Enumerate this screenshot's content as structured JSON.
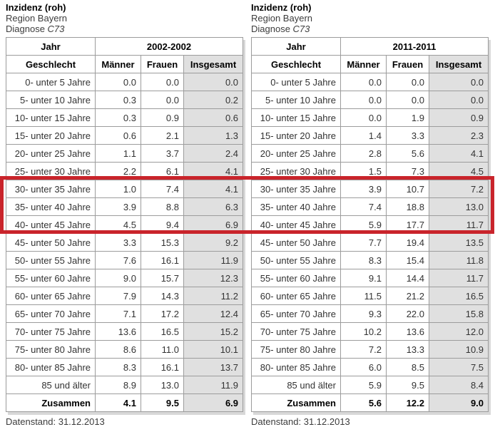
{
  "tables": [
    {
      "title": "Inzidenz (roh)",
      "region": "Region Bayern",
      "diagnose_prefix": "Diagnose ",
      "diagnose_code": "C73",
      "year_header_label": "Jahr",
      "year_range": "2002-2002",
      "geschlecht_label": "Geschlecht",
      "col_maenner": "Männer",
      "col_frauen": "Frauen",
      "col_insgesamt": "Insgesamt",
      "datenstand": "Datenstand: 31.12.2013",
      "rows": [
        {
          "label": "0- unter 5 Jahre",
          "maenner": "0.0",
          "frauen": "0.0",
          "insgesamt": "0.0",
          "total": false,
          "highlighted": false
        },
        {
          "label": "5- unter 10 Jahre",
          "maenner": "0.3",
          "frauen": "0.0",
          "insgesamt": "0.2",
          "total": false,
          "highlighted": false
        },
        {
          "label": "10- unter 15 Jahre",
          "maenner": "0.3",
          "frauen": "0.9",
          "insgesamt": "0.6",
          "total": false,
          "highlighted": false
        },
        {
          "label": "15- unter 20 Jahre",
          "maenner": "0.6",
          "frauen": "2.1",
          "insgesamt": "1.3",
          "total": false,
          "highlighted": false
        },
        {
          "label": "20- unter 25 Jahre",
          "maenner": "1.1",
          "frauen": "3.7",
          "insgesamt": "2.4",
          "total": false,
          "highlighted": false
        },
        {
          "label": "25- unter 30 Jahre",
          "maenner": "2.2",
          "frauen": "6.1",
          "insgesamt": "4.1",
          "total": false,
          "highlighted": false
        },
        {
          "label": "30- unter 35 Jahre",
          "maenner": "1.0",
          "frauen": "7.4",
          "insgesamt": "4.1",
          "total": false,
          "highlighted": true
        },
        {
          "label": "35- unter 40 Jahre",
          "maenner": "3.9",
          "frauen": "8.8",
          "insgesamt": "6.3",
          "total": false,
          "highlighted": true
        },
        {
          "label": "40- unter 45 Jahre",
          "maenner": "4.5",
          "frauen": "9.4",
          "insgesamt": "6.9",
          "total": false,
          "highlighted": true
        },
        {
          "label": "45- unter 50 Jahre",
          "maenner": "3.3",
          "frauen": "15.3",
          "insgesamt": "9.2",
          "total": false,
          "highlighted": false
        },
        {
          "label": "50- unter 55 Jahre",
          "maenner": "7.6",
          "frauen": "16.1",
          "insgesamt": "11.9",
          "total": false,
          "highlighted": false
        },
        {
          "label": "55- unter 60 Jahre",
          "maenner": "9.0",
          "frauen": "15.7",
          "insgesamt": "12.3",
          "total": false,
          "highlighted": false
        },
        {
          "label": "60- unter 65 Jahre",
          "maenner": "7.9",
          "frauen": "14.3",
          "insgesamt": "11.2",
          "total": false,
          "highlighted": false
        },
        {
          "label": "65- unter 70 Jahre",
          "maenner": "7.1",
          "frauen": "17.2",
          "insgesamt": "12.4",
          "total": false,
          "highlighted": false
        },
        {
          "label": "70- unter 75 Jahre",
          "maenner": "13.6",
          "frauen": "16.5",
          "insgesamt": "15.2",
          "total": false,
          "highlighted": false
        },
        {
          "label": "75- unter 80 Jahre",
          "maenner": "8.6",
          "frauen": "11.0",
          "insgesamt": "10.1",
          "total": false,
          "highlighted": false
        },
        {
          "label": "80- unter 85 Jahre",
          "maenner": "8.3",
          "frauen": "16.1",
          "insgesamt": "13.7",
          "total": false,
          "highlighted": false
        },
        {
          "label": "85 und älter",
          "maenner": "8.9",
          "frauen": "13.0",
          "insgesamt": "11.9",
          "total": false,
          "highlighted": false
        },
        {
          "label": "Zusammen",
          "maenner": "4.1",
          "frauen": "9.5",
          "insgesamt": "6.9",
          "total": true,
          "highlighted": false
        }
      ]
    },
    {
      "title": "Inzidenz (roh)",
      "region": "Region Bayern",
      "diagnose_prefix": "Diagnose ",
      "diagnose_code": "C73",
      "year_header_label": "Jahr",
      "year_range": "2011-2011",
      "geschlecht_label": "Geschlecht",
      "col_maenner": "Männer",
      "col_frauen": "Frauen",
      "col_insgesamt": "Insgesamt",
      "datenstand": "Datenstand: 31.12.2013",
      "rows": [
        {
          "label": "0- unter 5 Jahre",
          "maenner": "0.0",
          "frauen": "0.0",
          "insgesamt": "0.0",
          "total": false,
          "highlighted": false
        },
        {
          "label": "5- unter 10 Jahre",
          "maenner": "0.0",
          "frauen": "0.0",
          "insgesamt": "0.0",
          "total": false,
          "highlighted": false
        },
        {
          "label": "10- unter 15 Jahre",
          "maenner": "0.0",
          "frauen": "1.9",
          "insgesamt": "0.9",
          "total": false,
          "highlighted": false
        },
        {
          "label": "15- unter 20 Jahre",
          "maenner": "1.4",
          "frauen": "3.3",
          "insgesamt": "2.3",
          "total": false,
          "highlighted": false
        },
        {
          "label": "20- unter 25 Jahre",
          "maenner": "2.8",
          "frauen": "5.6",
          "insgesamt": "4.1",
          "total": false,
          "highlighted": false
        },
        {
          "label": "25- unter 30 Jahre",
          "maenner": "1.5",
          "frauen": "7.3",
          "insgesamt": "4.5",
          "total": false,
          "highlighted": false
        },
        {
          "label": "30- unter 35 Jahre",
          "maenner": "3.9",
          "frauen": "10.7",
          "insgesamt": "7.2",
          "total": false,
          "highlighted": true
        },
        {
          "label": "35- unter 40 Jahre",
          "maenner": "7.4",
          "frauen": "18.8",
          "insgesamt": "13.0",
          "total": false,
          "highlighted": true
        },
        {
          "label": "40- unter 45 Jahre",
          "maenner": "5.9",
          "frauen": "17.7",
          "insgesamt": "11.7",
          "total": false,
          "highlighted": true
        },
        {
          "label": "45- unter 50 Jahre",
          "maenner": "7.7",
          "frauen": "19.4",
          "insgesamt": "13.5",
          "total": false,
          "highlighted": false
        },
        {
          "label": "50- unter 55 Jahre",
          "maenner": "8.3",
          "frauen": "15.4",
          "insgesamt": "11.8",
          "total": false,
          "highlighted": false
        },
        {
          "label": "55- unter 60 Jahre",
          "maenner": "9.1",
          "frauen": "14.4",
          "insgesamt": "11.7",
          "total": false,
          "highlighted": false
        },
        {
          "label": "60- unter 65 Jahre",
          "maenner": "11.5",
          "frauen": "21.2",
          "insgesamt": "16.5",
          "total": false,
          "highlighted": false
        },
        {
          "label": "65- unter 70 Jahre",
          "maenner": "9.3",
          "frauen": "22.0",
          "insgesamt": "15.8",
          "total": false,
          "highlighted": false
        },
        {
          "label": "70- unter 75 Jahre",
          "maenner": "10.2",
          "frauen": "13.6",
          "insgesamt": "12.0",
          "total": false,
          "highlighted": false
        },
        {
          "label": "75- unter 80 Jahre",
          "maenner": "7.2",
          "frauen": "13.3",
          "insgesamt": "10.9",
          "total": false,
          "highlighted": false
        },
        {
          "label": "80- unter 85 Jahre",
          "maenner": "6.0",
          "frauen": "8.5",
          "insgesamt": "7.5",
          "total": false,
          "highlighted": false
        },
        {
          "label": "85 und älter",
          "maenner": "5.9",
          "frauen": "9.5",
          "insgesamt": "8.4",
          "total": false,
          "highlighted": false
        },
        {
          "label": "Zusammen",
          "maenner": "5.6",
          "frauen": "12.2",
          "insgesamt": "9.0",
          "total": true,
          "highlighted": false
        }
      ]
    }
  ],
  "highlight": {
    "color": "#c9242b",
    "highlighted_rows": [
      "30- unter 35 Jahre",
      "35- unter 40 Jahre",
      "40- unter 45 Jahre"
    ]
  },
  "colors": {
    "border_grey": "#9c9c9c",
    "total_column_bg": "#e0e0e0",
    "shadow": "#d8d8d8"
  },
  "chart_data": [
    {
      "type": "table",
      "title": "Inzidenz (roh), Region Bayern, Diagnose C73, 2002-2002",
      "columns": [
        "Geschlecht",
        "Männer",
        "Frauen",
        "Insgesamt"
      ],
      "rows": [
        [
          "0- unter 5 Jahre",
          0.0,
          0.0,
          0.0
        ],
        [
          "5- unter 10 Jahre",
          0.3,
          0.0,
          0.2
        ],
        [
          "10- unter 15 Jahre",
          0.3,
          0.9,
          0.6
        ],
        [
          "15- unter 20 Jahre",
          0.6,
          2.1,
          1.3
        ],
        [
          "20- unter 25 Jahre",
          1.1,
          3.7,
          2.4
        ],
        [
          "25- unter 30 Jahre",
          2.2,
          6.1,
          4.1
        ],
        [
          "30- unter 35 Jahre",
          1.0,
          7.4,
          4.1
        ],
        [
          "35- unter 40 Jahre",
          3.9,
          8.8,
          6.3
        ],
        [
          "40- unter 45 Jahre",
          4.5,
          9.4,
          6.9
        ],
        [
          "45- unter 50 Jahre",
          3.3,
          15.3,
          9.2
        ],
        [
          "50- unter 55 Jahre",
          7.6,
          16.1,
          11.9
        ],
        [
          "55- unter 60 Jahre",
          9.0,
          15.7,
          12.3
        ],
        [
          "60- unter 65 Jahre",
          7.9,
          14.3,
          11.2
        ],
        [
          "65- unter 70 Jahre",
          7.1,
          17.2,
          12.4
        ],
        [
          "70- unter 75 Jahre",
          13.6,
          16.5,
          15.2
        ],
        [
          "75- unter 80 Jahre",
          8.6,
          11.0,
          10.1
        ],
        [
          "80- unter 85 Jahre",
          8.3,
          16.1,
          13.7
        ],
        [
          "85 und älter",
          8.9,
          13.0,
          11.9
        ],
        [
          "Zusammen",
          4.1,
          9.5,
          6.9
        ]
      ],
      "footer": "Datenstand: 31.12.2013"
    },
    {
      "type": "table",
      "title": "Inzidenz (roh), Region Bayern, Diagnose C73, 2011-2011",
      "columns": [
        "Geschlecht",
        "Männer",
        "Frauen",
        "Insgesamt"
      ],
      "rows": [
        [
          "0- unter 5 Jahre",
          0.0,
          0.0,
          0.0
        ],
        [
          "5- unter 10 Jahre",
          0.0,
          0.0,
          0.0
        ],
        [
          "10- unter 15 Jahre",
          0.0,
          1.9,
          0.9
        ],
        [
          "15- unter 20 Jahre",
          1.4,
          3.3,
          2.3
        ],
        [
          "20- unter 25 Jahre",
          2.8,
          5.6,
          4.1
        ],
        [
          "25- unter 30 Jahre",
          1.5,
          7.3,
          4.5
        ],
        [
          "30- unter 35 Jahre",
          3.9,
          10.7,
          7.2
        ],
        [
          "35- unter 40 Jahre",
          7.4,
          18.8,
          13.0
        ],
        [
          "40- unter 45 Jahre",
          5.9,
          17.7,
          11.7
        ],
        [
          "45- unter 50 Jahre",
          7.7,
          19.4,
          13.5
        ],
        [
          "50- unter 55 Jahre",
          8.3,
          15.4,
          11.8
        ],
        [
          "55- unter 60 Jahre",
          9.1,
          14.4,
          11.7
        ],
        [
          "60- unter 65 Jahre",
          11.5,
          21.2,
          16.5
        ],
        [
          "65- unter 70 Jahre",
          9.3,
          22.0,
          15.8
        ],
        [
          "70- unter 75 Jahre",
          10.2,
          13.6,
          12.0
        ],
        [
          "75- unter 80 Jahre",
          7.2,
          13.3,
          10.9
        ],
        [
          "80- unter 85 Jahre",
          6.0,
          8.5,
          7.5
        ],
        [
          "85 und älter",
          5.9,
          9.5,
          8.4
        ],
        [
          "Zusammen",
          5.6,
          12.2,
          9.0
        ]
      ],
      "footer": "Datenstand: 31.12.2013"
    }
  ]
}
